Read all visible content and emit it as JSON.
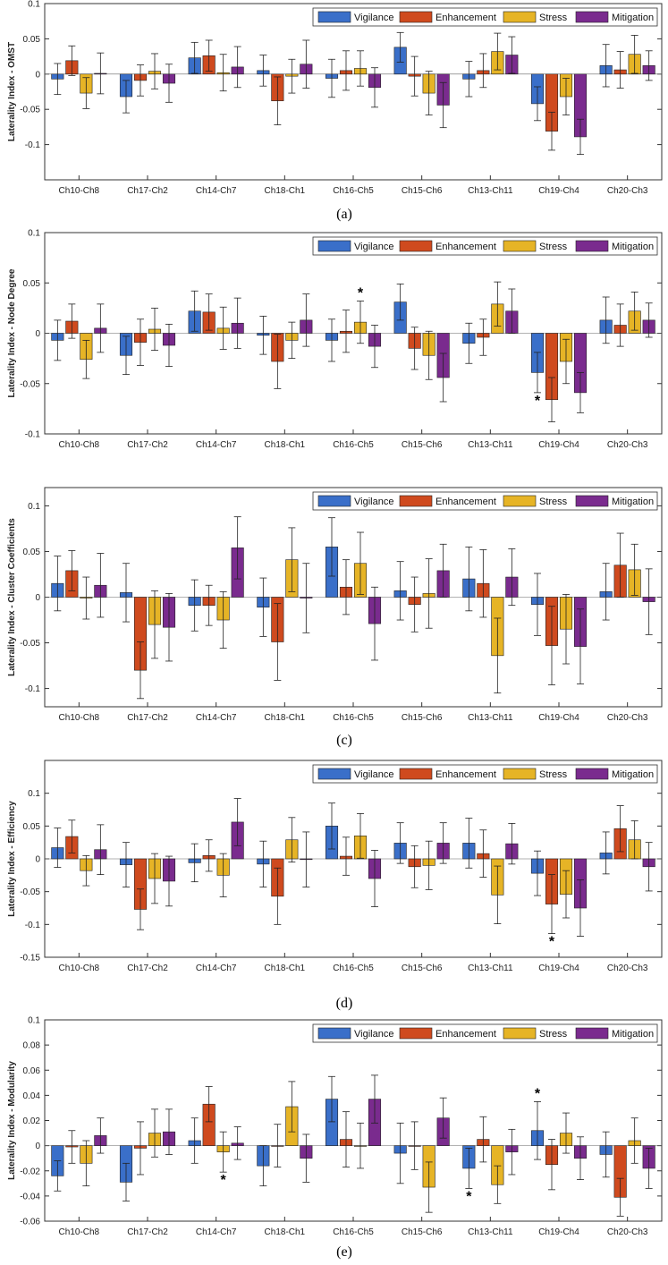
{
  "colors": {
    "Vigilance": "#3a6fc9",
    "Enhancement": "#cf4a1e",
    "Stress": "#e6b426",
    "Mitigation": "#7a2b8e"
  },
  "chart_data": [
    {
      "type": "bar",
      "caption": "(a)",
      "ylabel": "Laterality Index - OMST",
      "ylim": [
        -0.15,
        0.1
      ],
      "yticks": [
        -0.1,
        -0.05,
        0,
        0.05,
        0.1
      ],
      "ytick_labels": [
        "-0.1",
        "-0.05",
        "0",
        "0.05",
        "0.1"
      ],
      "legend_position": "top-right",
      "categories": [
        "Ch10-Ch8",
        "Ch17-Ch2",
        "Ch14-Ch7",
        "Ch18-Ch1",
        "Ch16-Ch5",
        "Ch15-Ch6",
        "Ch13-Ch11",
        "Ch19-Ch4",
        "Ch20-Ch3"
      ],
      "series": [
        {
          "name": "Vigilance",
          "values": [
            -0.007,
            -0.032,
            0.023,
            0.005,
            -0.006,
            0.038,
            -0.007,
            -0.042,
            0.012
          ],
          "errors": [
            0.022,
            0.023,
            0.022,
            0.022,
            0.027,
            0.021,
            0.025,
            0.024,
            0.03
          ]
        },
        {
          "name": "Enhancement",
          "values": [
            0.019,
            -0.009,
            0.026,
            -0.038,
            0.005,
            -0.003,
            0.005,
            -0.081,
            0.006
          ],
          "errors": [
            0.021,
            0.022,
            0.022,
            0.034,
            0.028,
            0.028,
            0.024,
            0.027,
            0.026
          ]
        },
        {
          "name": "Stress",
          "values": [
            -0.027,
            0.004,
            0.002,
            -0.003,
            0.008,
            -0.027,
            0.032,
            -0.032,
            0.028
          ],
          "errors": [
            0.022,
            0.025,
            0.026,
            0.024,
            0.025,
            0.031,
            0.026,
            0.026,
            0.027
          ]
        },
        {
          "name": "Mitigation",
          "values": [
            0.001,
            -0.013,
            0.01,
            0.014,
            -0.019,
            -0.044,
            0.027,
            -0.089,
            0.012
          ],
          "errors": [
            0.029,
            0.027,
            0.029,
            0.034,
            0.028,
            0.032,
            0.026,
            0.025,
            0.021
          ]
        }
      ],
      "annotations": []
    },
    {
      "type": "bar",
      "caption": "(b)",
      "ylabel": "Laterality Index - Node Degree",
      "ylim": [
        -0.1,
        0.1
      ],
      "yticks": [
        -0.1,
        -0.05,
        0,
        0.05,
        0.1
      ],
      "ytick_labels": [
        "-0.1",
        "-0.05",
        "0",
        "0.05",
        "0.1"
      ],
      "legend_position": "top-right",
      "categories": [
        "Ch10-Ch8",
        "Ch17-Ch2",
        "Ch14-Ch7",
        "Ch18-Ch1",
        "Ch16-Ch5",
        "Ch15-Ch6",
        "Ch13-Ch11",
        "Ch19-Ch4",
        "Ch20-Ch3"
      ],
      "series": [
        {
          "name": "Vigilance",
          "values": [
            -0.007,
            -0.022,
            0.022,
            -0.002,
            -0.007,
            0.031,
            -0.01,
            -0.039,
            0.013
          ],
          "errors": [
            0.02,
            0.019,
            0.02,
            0.019,
            0.021,
            0.018,
            0.02,
            0.02,
            0.023
          ]
        },
        {
          "name": "Enhancement",
          "values": [
            0.012,
            -0.009,
            0.021,
            -0.028,
            0.002,
            -0.015,
            -0.004,
            -0.066,
            0.008
          ],
          "errors": [
            0.017,
            0.023,
            0.018,
            0.027,
            0.021,
            0.021,
            0.018,
            0.022,
            0.021
          ]
        },
        {
          "name": "Stress",
          "values": [
            -0.026,
            0.004,
            0.005,
            -0.007,
            0.011,
            -0.022,
            0.029,
            -0.028,
            0.022
          ],
          "errors": [
            0.019,
            0.021,
            0.021,
            0.018,
            0.021,
            0.024,
            0.022,
            0.022,
            0.019
          ]
        },
        {
          "name": "Mitigation",
          "values": [
            0.005,
            -0.012,
            0.01,
            0.013,
            -0.013,
            -0.044,
            0.022,
            -0.059,
            0.013
          ],
          "errors": [
            0.024,
            0.021,
            0.025,
            0.026,
            0.021,
            0.024,
            0.022,
            0.02,
            0.017
          ]
        }
      ],
      "annotations": [
        {
          "text": "*",
          "category": "Ch16-Ch5",
          "series": "Stress",
          "position": "above"
        },
        {
          "text": "*",
          "category": "Ch19-Ch4",
          "series": "Vigilance",
          "position": "below"
        }
      ]
    },
    {
      "type": "bar",
      "caption": "(c)",
      "ylabel": "Laterality Index - Cluster Coefficients",
      "ylim": [
        -0.12,
        0.12
      ],
      "yticks": [
        -0.1,
        -0.05,
        0,
        0.05,
        0.1
      ],
      "ytick_labels": [
        "-0.1",
        "-0.05",
        "0",
        "0.05",
        "0.1"
      ],
      "legend_position": "top-right",
      "categories": [
        "Ch10-Ch8",
        "Ch17-Ch2",
        "Ch14-Ch7",
        "Ch18-Ch1",
        "Ch16-Ch5",
        "Ch15-Ch6",
        "Ch13-Ch11",
        "Ch19-Ch4",
        "Ch20-Ch3"
      ],
      "series": [
        {
          "name": "Vigilance",
          "values": [
            0.015,
            0.005,
            -0.009,
            -0.011,
            0.055,
            0.007,
            0.02,
            -0.008,
            0.006
          ],
          "errors": [
            0.03,
            0.032,
            0.028,
            0.032,
            0.032,
            0.032,
            0.035,
            0.034,
            0.031
          ]
        },
        {
          "name": "Enhancement",
          "values": [
            0.029,
            -0.08,
            -0.009,
            -0.049,
            0.011,
            -0.008,
            0.015,
            -0.053,
            0.035
          ],
          "errors": [
            0.022,
            0.031,
            0.022,
            0.042,
            0.03,
            0.03,
            0.037,
            0.043,
            0.035
          ]
        },
        {
          "name": "Stress",
          "values": [
            -0.001,
            -0.03,
            -0.025,
            0.041,
            0.037,
            0.004,
            -0.064,
            -0.035,
            0.03
          ],
          "errors": [
            0.023,
            0.037,
            0.031,
            0.035,
            0.034,
            0.038,
            0.041,
            0.038,
            0.028
          ]
        },
        {
          "name": "Mitigation",
          "values": [
            0.013,
            -0.033,
            0.054,
            -0.001,
            -0.029,
            0.029,
            0.022,
            -0.054,
            -0.005
          ],
          "errors": [
            0.035,
            0.037,
            0.034,
            0.038,
            0.04,
            0.029,
            0.031,
            0.041,
            0.036
          ]
        }
      ],
      "annotations": []
    },
    {
      "type": "bar",
      "caption": "(d)",
      "ylabel": "Laterality Index - Efficiency",
      "ylim": [
        -0.15,
        0.15
      ],
      "yticks": [
        -0.15,
        -0.1,
        -0.05,
        0,
        0.05,
        0.1
      ],
      "ytick_labels": [
        "-0.15",
        "-0.1",
        "-0.05",
        "0",
        "0.05",
        "0.1"
      ],
      "legend_position": "top-right",
      "categories": [
        "Ch10-Ch8",
        "Ch17-Ch2",
        "Ch14-Ch7",
        "Ch18-Ch1",
        "Ch16-Ch5",
        "Ch15-Ch6",
        "Ch13-Ch11",
        "Ch19-Ch4",
        "Ch20-Ch3"
      ],
      "series": [
        {
          "name": "Vigilance",
          "values": [
            0.017,
            -0.009,
            -0.006,
            -0.008,
            0.05,
            0.024,
            0.024,
            -0.022,
            0.009
          ],
          "errors": [
            0.03,
            0.034,
            0.029,
            0.035,
            0.035,
            0.031,
            0.038,
            0.034,
            0.032
          ]
        },
        {
          "name": "Enhancement",
          "values": [
            0.034,
            -0.077,
            0.005,
            -0.057,
            0.004,
            -0.012,
            0.008,
            -0.069,
            0.046
          ],
          "errors": [
            0.025,
            0.031,
            0.024,
            0.043,
            0.029,
            0.032,
            0.036,
            0.045,
            0.035
          ]
        },
        {
          "name": "Stress",
          "values": [
            -0.018,
            -0.03,
            -0.025,
            0.029,
            0.035,
            -0.01,
            -0.055,
            -0.054,
            0.029
          ],
          "errors": [
            0.023,
            0.038,
            0.033,
            0.034,
            0.034,
            0.037,
            0.044,
            0.036,
            0.029
          ]
        },
        {
          "name": "Mitigation",
          "values": [
            0.014,
            -0.034,
            0.056,
            -0.001,
            -0.03,
            0.024,
            0.023,
            -0.075,
            -0.012
          ],
          "errors": [
            0.038,
            0.038,
            0.036,
            0.042,
            0.043,
            0.031,
            0.031,
            0.043,
            0.037
          ]
        }
      ],
      "annotations": [
        {
          "text": "*",
          "category": "Ch19-Ch4",
          "series": "Enhancement",
          "position": "below"
        }
      ]
    },
    {
      "type": "bar",
      "caption": "(e)",
      "ylabel": "Laterality Index - Modularity",
      "ylim": [
        -0.06,
        0.1
      ],
      "yticks": [
        -0.06,
        -0.04,
        -0.02,
        0,
        0.02,
        0.04,
        0.06,
        0.08,
        0.1
      ],
      "ytick_labels": [
        "-0.06",
        "-0.04",
        "-0.02",
        "0",
        "0.02",
        "0.04",
        "0.06",
        "0.08",
        "0.1"
      ],
      "legend_position": "top-right",
      "categories": [
        "Ch10-Ch8",
        "Ch17-Ch2",
        "Ch14-Ch7",
        "Ch18-Ch1",
        "Ch16-Ch5",
        "Ch15-Ch6",
        "Ch13-Ch11",
        "Ch19-Ch4",
        "Ch20-Ch3"
      ],
      "series": [
        {
          "name": "Vigilance",
          "values": [
            -0.024,
            -0.029,
            0.004,
            -0.016,
            0.037,
            -0.006,
            -0.018,
            0.012,
            -0.007
          ],
          "errors": [
            0.012,
            0.015,
            0.018,
            0.016,
            0.018,
            0.024,
            0.016,
            0.023,
            0.018
          ]
        },
        {
          "name": "Enhancement",
          "values": [
            -0.001,
            -0.002,
            0.033,
            0.0,
            0.005,
            0.0,
            0.005,
            -0.015,
            -0.041
          ],
          "errors": [
            0.013,
            0.021,
            0.014,
            0.017,
            0.022,
            0.019,
            0.018,
            0.02,
            0.015
          ]
        },
        {
          "name": "Stress",
          "values": [
            -0.014,
            0.01,
            -0.005,
            0.031,
            0.0,
            -0.033,
            -0.031,
            0.01,
            0.004
          ],
          "errors": [
            0.018,
            0.019,
            0.016,
            0.02,
            0.018,
            0.02,
            0.015,
            0.016,
            0.018
          ]
        },
        {
          "name": "Mitigation",
          "values": [
            0.008,
            0.011,
            0.002,
            -0.01,
            0.037,
            0.022,
            -0.005,
            -0.01,
            -0.018
          ],
          "errors": [
            0.014,
            0.018,
            0.013,
            0.019,
            0.019,
            0.016,
            0.018,
            0.017,
            0.016
          ]
        }
      ],
      "annotations": [
        {
          "text": "*",
          "category": "Ch14-Ch7",
          "series": "Stress",
          "position": "below"
        },
        {
          "text": "*",
          "category": "Ch13-Ch11",
          "series": "Vigilance",
          "position": "below"
        },
        {
          "text": "*",
          "category": "Ch19-Ch4",
          "series": "Vigilance",
          "position": "above"
        }
      ]
    }
  ]
}
